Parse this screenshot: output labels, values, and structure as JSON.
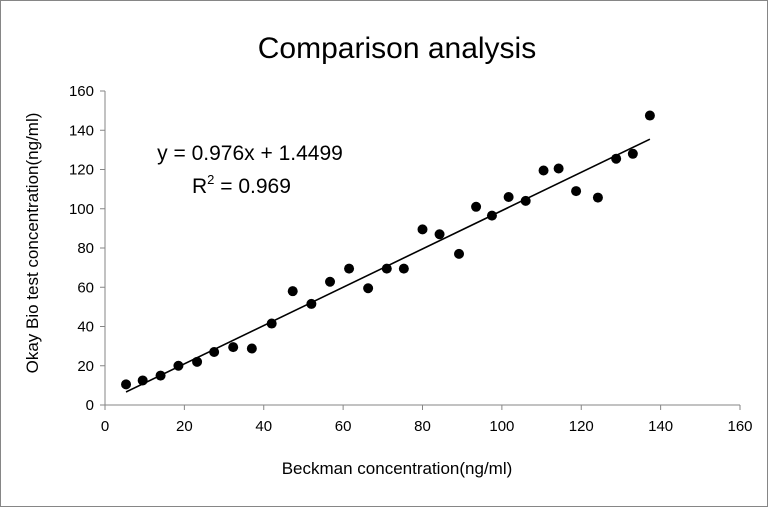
{
  "chart_data": {
    "type": "scatter",
    "title": "Comparison analysis",
    "xlabel": "Beckman concentration(ng/ml)",
    "ylabel": "Okay Bio test concentration(ng/ml)",
    "xlim": [
      0,
      160
    ],
    "ylim": [
      0,
      160
    ],
    "x_ticks": [
      0,
      20,
      40,
      60,
      80,
      100,
      120,
      140,
      160
    ],
    "y_ticks": [
      0,
      20,
      40,
      60,
      80,
      100,
      120,
      140,
      160
    ],
    "grid": false,
    "legend": "none",
    "marker_color": "#000000",
    "series": [
      {
        "points": [
          [
            5.3,
            10.5
          ],
          [
            9.5,
            12.5
          ],
          [
            14.0,
            15.0
          ],
          [
            18.5,
            20.0
          ],
          [
            23.2,
            22.0
          ],
          [
            27.5,
            27.0
          ],
          [
            32.3,
            29.5
          ],
          [
            37.0,
            28.8
          ],
          [
            42.0,
            41.5
          ],
          [
            47.3,
            58.0
          ],
          [
            52.0,
            51.5
          ],
          [
            56.7,
            62.8
          ],
          [
            61.5,
            69.5
          ],
          [
            66.3,
            59.5
          ],
          [
            71.0,
            69.5
          ],
          [
            75.3,
            69.5
          ],
          [
            80.0,
            89.5
          ],
          [
            84.3,
            87.0
          ],
          [
            89.2,
            77.0
          ],
          [
            93.5,
            101.0
          ],
          [
            97.5,
            96.5
          ],
          [
            101.7,
            106.0
          ],
          [
            106.0,
            104.0
          ],
          [
            110.5,
            119.5
          ],
          [
            114.3,
            120.5
          ],
          [
            118.7,
            109.0
          ],
          [
            124.2,
            105.7
          ],
          [
            128.8,
            125.5
          ],
          [
            133.0,
            128.0
          ],
          [
            137.3,
            147.5
          ]
        ]
      }
    ],
    "trendline": {
      "slope": 0.976,
      "intercept": 1.4499,
      "x_range": [
        5.3,
        137.3
      ],
      "color": "#000000"
    },
    "annotations": {
      "equation": "y = 0.976x + 1.4499",
      "r2_label": "R",
      "r2_sup": "2",
      "r2_value": " = 0.969"
    }
  }
}
